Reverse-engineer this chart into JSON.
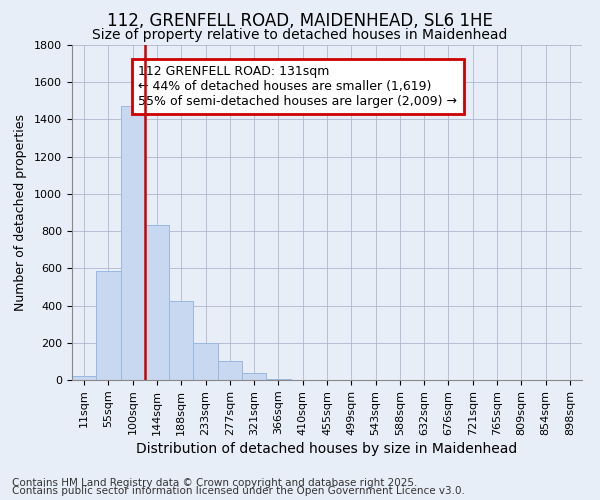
{
  "title": "112, GRENFELL ROAD, MAIDENHEAD, SL6 1HE",
  "subtitle": "Size of property relative to detached houses in Maidenhead",
  "xlabel": "Distribution of detached houses by size in Maidenhead",
  "ylabel": "Number of detached properties",
  "categories": [
    "11sqm",
    "55sqm",
    "100sqm",
    "144sqm",
    "188sqm",
    "233sqm",
    "277sqm",
    "321sqm",
    "366sqm",
    "410sqm",
    "455sqm",
    "499sqm",
    "543sqm",
    "588sqm",
    "632sqm",
    "676sqm",
    "721sqm",
    "765sqm",
    "809sqm",
    "854sqm",
    "898sqm"
  ],
  "values": [
    20,
    585,
    1470,
    835,
    425,
    200,
    100,
    35,
    5,
    2,
    1,
    0,
    0,
    0,
    0,
    0,
    0,
    0,
    0,
    0,
    0
  ],
  "bar_color": "#c8d8f0",
  "bar_edge_color": "#9ab8e0",
  "vline_color": "#cc0000",
  "vline_x_index": 2.5,
  "annotation_text": "112 GRENFELL ROAD: 131sqm\n← 44% of detached houses are smaller (1,619)\n55% of semi-detached houses are larger (2,009) →",
  "annotation_box_color": "#ffffff",
  "annotation_box_edge": "#cc0000",
  "ylim": [
    0,
    1800
  ],
  "yticks": [
    0,
    200,
    400,
    600,
    800,
    1000,
    1200,
    1400,
    1600,
    1800
  ],
  "footer_line1": "Contains HM Land Registry data © Crown copyright and database right 2025.",
  "footer_line2": "Contains public sector information licensed under the Open Government Licence v3.0.",
  "bg_color": "#e8eef8",
  "plot_bg_color": "#e8eef8",
  "title_fontsize": 12,
  "subtitle_fontsize": 10,
  "xlabel_fontsize": 10,
  "ylabel_fontsize": 9,
  "tick_fontsize": 8,
  "footer_fontsize": 7.5,
  "annotation_fontsize": 9
}
